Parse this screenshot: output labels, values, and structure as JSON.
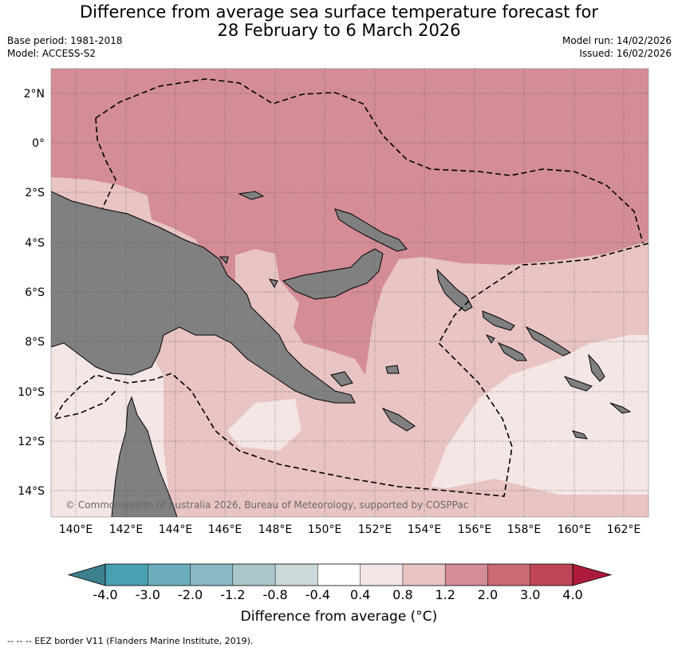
{
  "title": {
    "line1": "Difference from average sea surface temperature forecast for",
    "line2": "28 February to 6 March 2026"
  },
  "meta": {
    "base_period": "Base period: 1981-2018",
    "model": "Model: ACCESS-S2",
    "model_run": "Model run: 14/02/2026",
    "issued": "Issued: 16/02/2026"
  },
  "map": {
    "lat_labels": [
      "2°N",
      "0°",
      "2°S",
      "4°S",
      "6°S",
      "8°S",
      "10°S",
      "12°S",
      "14°S"
    ],
    "lon_labels": [
      "140°E",
      "142°E",
      "144°E",
      "146°E",
      "148°E",
      "150°E",
      "152°E",
      "154°E",
      "156°E",
      "158°E",
      "160°E",
      "162°E"
    ],
    "copyright": "© Commonwealth of Australia 2026, Bureau of Meteorology, supported by COSPPac",
    "land_color": "#808080",
    "anomaly_colors": {
      "0.4-0.8": "#f4e6e4",
      "0.8-1.2": "#e8c4c2",
      "1.2-2.0": "#d48d95"
    }
  },
  "colorbar": {
    "ticks": [
      "-4.0",
      "-3.0",
      "-2.0",
      "-1.2",
      "-0.8",
      "-0.4",
      "0.4",
      "0.8",
      "1.2",
      "2.0",
      "3.0",
      "4.0"
    ],
    "colors": [
      "#3d808d",
      "#48a0b2",
      "#6cadbd",
      "#8ab8c3",
      "#a8c6cb",
      "#cdd8da",
      "#ffffff",
      "#f4e6e4",
      "#e8c4c2",
      "#d48d95",
      "#c96a74",
      "#bf4556",
      "#ad1b3a"
    ],
    "title": "Difference from average (°C)"
  },
  "footer": "-- -- -- EEZ border V11 (Flanders Marine Institute, 2019)."
}
